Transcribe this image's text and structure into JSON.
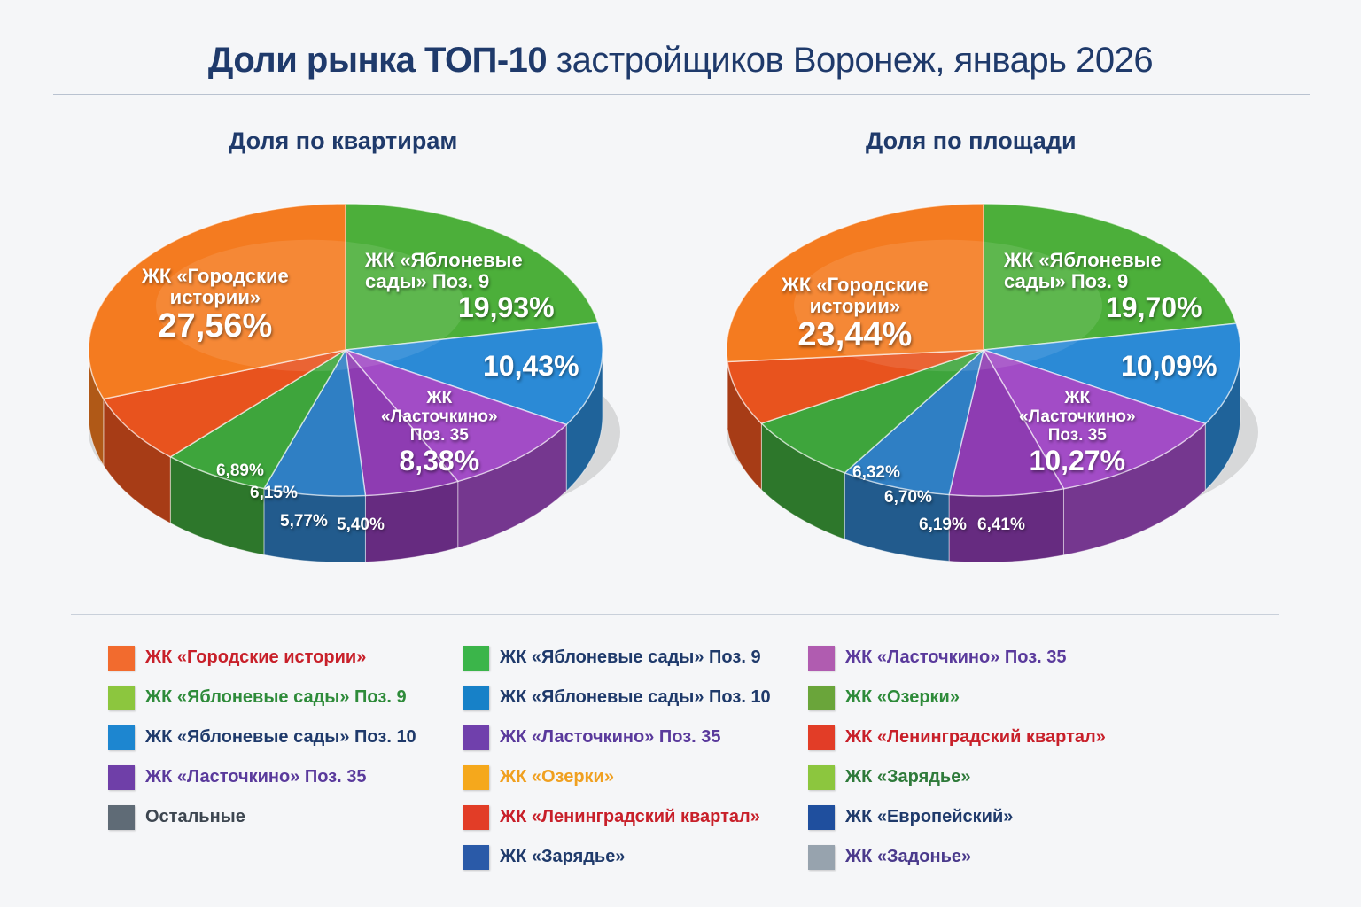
{
  "title_bold": "Доли рынка ТОП-10",
  "title_rest": "застройщиков Воронеж, январь 2026",
  "chart_data": [
    {
      "type": "pie",
      "title": "Доля по квартирам",
      "slices": [
        {
          "name": "ЖК «Яблоневые сады» Поз. 9",
          "value": 19.93,
          "label": "19,93%",
          "color": "#4caf3a",
          "text_lines": [
            "ЖК «Яблоневые",
            "сады» Поз. 9"
          ]
        },
        {
          "name": "ЖК «Яблоневые сады» Поз. 10",
          "value": 10.43,
          "label": "10,43%",
          "color": "#2b8ad6"
        },
        {
          "name": "ЖК «Ласточкино» Поз. 35",
          "value": 8.38,
          "label": "8,38%",
          "color": "#a24cc6",
          "text_lines": [
            "ЖК",
            "«Ласточкино»",
            "Поз. 35"
          ]
        },
        {
          "name": "",
          "value": 5.4,
          "label": "5,40%",
          "color": "#8e3cb2"
        },
        {
          "name": "",
          "value": 5.77,
          "label": "5,77%",
          "color": "#2f7fc4"
        },
        {
          "name": "",
          "value": 6.15,
          "label": "6,15%",
          "color": "#3ea53c"
        },
        {
          "name": "",
          "value": 6.89,
          "label": "6,89%",
          "color": "#e8531e"
        },
        {
          "name": "ЖК «Городские истории»",
          "value": 27.56,
          "label": "27,56%",
          "color": "#f47b20",
          "text_lines": [
            "ЖК «Городские",
            "истории»"
          ]
        }
      ]
    },
    {
      "type": "pie",
      "title": "Доля по площади",
      "slices": [
        {
          "name": "ЖК «Яблоневые сады» Поз. 9",
          "value": 19.7,
          "label": "19,70%",
          "color": "#4caf3a",
          "text_lines": [
            "ЖК «Яблоневые",
            "сады» Поз. 9"
          ]
        },
        {
          "name": "ЖК «Яблоневые сады» Поз. 10",
          "value": 10.09,
          "label": "10,09%",
          "color": "#2b8ad6"
        },
        {
          "name": "ЖК «Ласточкино» Поз. 35",
          "value": 10.27,
          "label": "10,27%",
          "color": "#a24cc6",
          "text_lines": [
            "ЖК",
            "«Ласточкино»",
            "Поз. 35"
          ]
        },
        {
          "name": "",
          "value": 6.41,
          "label": "6,41%",
          "color": "#8e3cb2"
        },
        {
          "name": "",
          "value": 6.19,
          "label": "6,19%",
          "color": "#2f7fc4"
        },
        {
          "name": "",
          "value": 6.7,
          "label": "6,70%",
          "color": "#3ea53c"
        },
        {
          "name": "",
          "value": 6.32,
          "label": "6,32%",
          "color": "#e8531e"
        },
        {
          "name": "ЖК «Городские истории»",
          "value": 23.44,
          "label": "23,44%",
          "color": "#f47b20",
          "text_lines": [
            "ЖК «Городские",
            "истории»"
          ]
        }
      ]
    }
  ],
  "legend": [
    [
      {
        "label": "ЖК «Городские истории»",
        "color": "#f26b2e",
        "text_color": "#c8202a"
      },
      {
        "label": "ЖК «Яблоневые сады» Поз. 9",
        "color": "#8cc63e",
        "text_color": "#2e8b3a"
      },
      {
        "label": "ЖК «Яблоневые сады» Поз. 10",
        "color": "#1d86d0",
        "text_color": "#1f3a6b"
      },
      {
        "label": "ЖК «Ласточкино» Поз. 35",
        "color": "#6f3fa8",
        "text_color": "#5a3a9c"
      },
      {
        "label": "Остальные",
        "color": "#5f6b76",
        "text_color": "#3d4650"
      }
    ],
    [
      {
        "label": "ЖК «Яблоневые сады» Поз. 9",
        "color": "#3bb54a",
        "text_color": "#1f3a6b"
      },
      {
        "label": "ЖК «Яблоневые сады» Поз. 10",
        "color": "#1781c8",
        "text_color": "#1f3a6b"
      },
      {
        "label": "ЖК «Ласточкино» Поз. 35",
        "color": "#7040ac",
        "text_color": "#5a3a9c"
      },
      {
        "label": "ЖК «Озерки»",
        "color": "#f5a81c",
        "text_color": "#f0a020"
      },
      {
        "label": "ЖК «Ленинградский квартал»",
        "color": "#e23d27",
        "text_color": "#c8202a"
      },
      {
        "label": "ЖК «Зарядье»",
        "color": "#2a5aa8",
        "text_color": "#1f3a6b"
      }
    ],
    [
      {
        "label": "ЖК «Ласточкино» Поз. 35",
        "color": "#b05cb0",
        "text_color": "#5a3a9c"
      },
      {
        "label": "ЖК «Озерки»",
        "color": "#6aa53a",
        "text_color": "#2e8b3a"
      },
      {
        "label": "ЖК «Ленинградский квартал»",
        "color": "#e23d27",
        "text_color": "#c8202a"
      },
      {
        "label": "ЖК «Зарядье»",
        "color": "#8cc63e",
        "text_color": "#2e7a3a"
      },
      {
        "label": "ЖК «Европейский»",
        "color": "#1f4f9e",
        "text_color": "#1f3a6b"
      },
      {
        "label": "ЖК «Задонье»",
        "color": "#97a3ae",
        "text_color": "#4a3a8c"
      }
    ]
  ]
}
